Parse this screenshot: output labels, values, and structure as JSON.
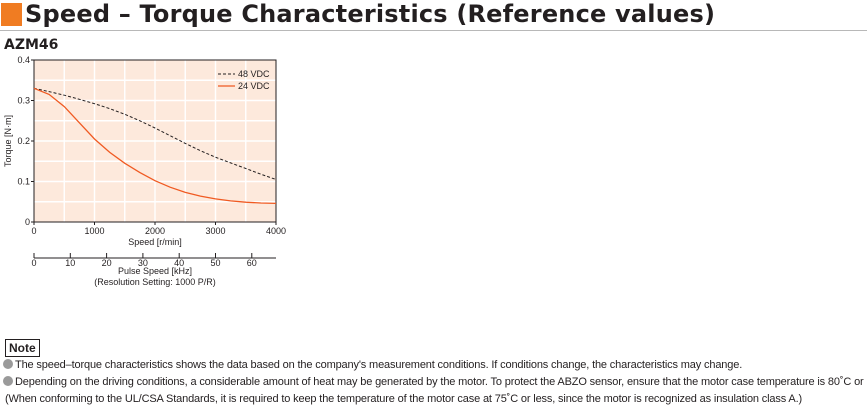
{
  "title": "Speed – Torque Characteristics (Reference values)",
  "model": "AZM46",
  "colors": {
    "accent": "#f07c22",
    "orange_series": "#f05a22",
    "dashed_series": "#231f20",
    "grid_fill": "#fde9dc"
  },
  "chart_data": {
    "type": "line",
    "xlabel": "Speed [r/min]",
    "ylabel": "Torque [N·m]",
    "xlim": [
      0,
      4000
    ],
    "ylim": [
      0,
      0.4
    ],
    "x_ticks": [
      "0",
      "1000",
      "2000",
      "3000",
      "4000"
    ],
    "y_ticks": [
      "0",
      "0.1",
      "0.2",
      "0.3",
      "0.4"
    ],
    "secondary_axis": {
      "label": "Pulse Speed [kHz]",
      "sublabel": "(Resolution Setting: 1000 P/R)",
      "ticks": [
        "0",
        "10",
        "20",
        "30",
        "40",
        "50",
        "60"
      ],
      "range": [
        0,
        66.67
      ]
    },
    "grid": true,
    "legend_position": "top-right",
    "series": [
      {
        "name": "48 VDC",
        "style": "dashed",
        "color": "#231f20",
        "x": [
          0,
          250,
          500,
          750,
          1000,
          1250,
          1500,
          1750,
          2000,
          2250,
          2500,
          2750,
          3000,
          3250,
          3500,
          3750,
          4000
        ],
        "y": [
          0.33,
          0.322,
          0.313,
          0.303,
          0.292,
          0.28,
          0.266,
          0.25,
          0.232,
          0.213,
          0.194,
          0.176,
          0.16,
          0.146,
          0.132,
          0.118,
          0.105
        ]
      },
      {
        "name": "24 VDC",
        "style": "solid",
        "color": "#f05a22",
        "x": [
          0,
          250,
          500,
          750,
          1000,
          1250,
          1500,
          1750,
          2000,
          2250,
          2500,
          2750,
          3000,
          3250,
          3500,
          3750,
          4000
        ],
        "y": [
          0.33,
          0.315,
          0.285,
          0.245,
          0.205,
          0.172,
          0.145,
          0.122,
          0.102,
          0.086,
          0.073,
          0.064,
          0.057,
          0.052,
          0.049,
          0.047,
          0.046
        ]
      }
    ]
  },
  "note": {
    "label": "Note",
    "lines": [
      "The speed–torque characteristics shows the data based on the company's measurement conditions. If conditions change, the characteristics may change.",
      "Depending on the driving conditions, a considerable amount of heat may be generated by the motor. To protect the ABZO sensor, ensure that the motor case temperature is 80˚C or less.",
      "(When conforming to the UL/CSA Standards, it is required to keep the temperature of the motor case at 75˚C or less, since the motor is recognized as insulation class A.)"
    ]
  }
}
